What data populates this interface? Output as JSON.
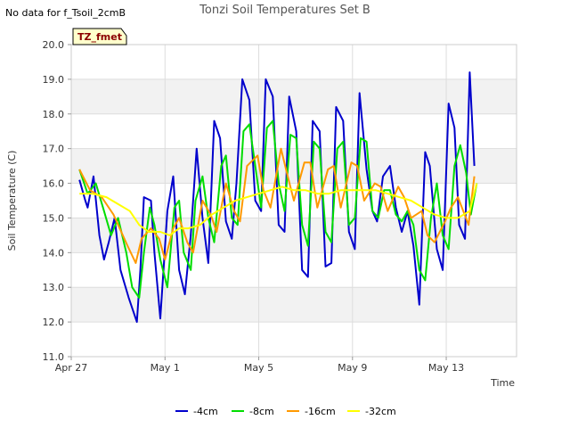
{
  "note": "No data for f_Tsoil_2cmB",
  "badge": "TZ_fmet",
  "chart_data": {
    "type": "line",
    "title": "Tonzi Soil Temperatures Set B",
    "xlabel": "Time",
    "ylabel": "Soil Temperature (C)",
    "ylim": [
      11.0,
      20.0
    ],
    "xlim": [
      0,
      19
    ],
    "y_ticks": [
      "11.0",
      "12.0",
      "13.0",
      "14.0",
      "15.0",
      "16.0",
      "17.0",
      "18.0",
      "19.0",
      "20.0"
    ],
    "x_ticks": [
      {
        "value": 0,
        "label": "Apr 27"
      },
      {
        "value": 4,
        "label": "May 1"
      },
      {
        "value": 8,
        "label": "May 5"
      },
      {
        "value": 12,
        "label": "May 9"
      },
      {
        "value": 16,
        "label": "May 13"
      }
    ],
    "x_unit": "days from Apr 27",
    "grid": true,
    "legend_position": "bottom",
    "series": [
      {
        "name": "-4cm",
        "color": "#0000cc",
        "x": [
          0.35,
          0.6,
          0.7,
          0.95,
          1.2,
          1.4,
          1.6,
          1.85,
          2.1,
          2.45,
          2.8,
          2.95,
          3.1,
          3.4,
          3.55,
          3.8,
          4.1,
          4.35,
          4.6,
          4.85,
          5.1,
          5.35,
          5.6,
          5.85,
          6.1,
          6.35,
          6.6,
          6.85,
          7.05,
          7.3,
          7.6,
          7.85,
          8.1,
          8.3,
          8.6,
          8.85,
          9.1,
          9.3,
          9.6,
          9.85,
          10.1,
          10.3,
          10.6,
          10.85,
          11.1,
          11.3,
          11.6,
          11.85,
          12.1,
          12.3,
          12.6,
          12.85,
          13.05,
          13.3,
          13.6,
          13.85,
          14.1,
          14.35,
          14.6,
          14.85,
          15.1,
          15.3,
          15.6,
          15.85,
          16.1,
          16.35,
          16.55,
          16.8,
          17.0,
          17.2
        ],
        "y": [
          16.1,
          15.5,
          15.3,
          16.2,
          14.5,
          13.8,
          14.3,
          15.0,
          13.5,
          12.7,
          12.0,
          13.5,
          15.6,
          15.5,
          14.0,
          12.1,
          15.2,
          16.2,
          13.5,
          12.8,
          14.5,
          17.0,
          15.0,
          13.7,
          17.8,
          17.3,
          14.9,
          14.4,
          16.0,
          19.0,
          18.4,
          15.5,
          15.2,
          19.0,
          18.5,
          14.8,
          14.6,
          18.5,
          17.5,
          13.5,
          13.3,
          17.8,
          17.5,
          13.6,
          13.7,
          18.2,
          17.8,
          14.6,
          14.1,
          18.6,
          16.4,
          15.2,
          14.9,
          16.2,
          16.5,
          15.3,
          14.6,
          15.2,
          14.2,
          12.5,
          16.9,
          16.5,
          14.1,
          13.5,
          18.3,
          17.6,
          14.8,
          14.4,
          19.2,
          16.5
        ]
      },
      {
        "name": "-8cm",
        "color": "#00dd00",
        "x": [
          0.35,
          0.7,
          1.05,
          1.4,
          1.7,
          2.0,
          2.35,
          2.6,
          2.9,
          3.1,
          3.35,
          3.55,
          3.8,
          4.1,
          4.4,
          4.6,
          4.8,
          5.1,
          5.3,
          5.6,
          5.85,
          6.1,
          6.4,
          6.6,
          6.85,
          7.1,
          7.35,
          7.6,
          7.85,
          8.1,
          8.35,
          8.6,
          8.85,
          9.1,
          9.35,
          9.6,
          9.85,
          10.1,
          10.35,
          10.6,
          10.85,
          11.1,
          11.35,
          11.6,
          11.85,
          12.1,
          12.35,
          12.6,
          12.85,
          13.1,
          13.35,
          13.6,
          13.85,
          14.1,
          14.35,
          14.6,
          14.85,
          15.1,
          15.35,
          15.6,
          15.85,
          16.1,
          16.35,
          16.6,
          16.85,
          17.05,
          17.3
        ],
        "y": [
          16.4,
          15.7,
          16.0,
          15.2,
          14.5,
          15.0,
          14.0,
          13.0,
          12.7,
          14.0,
          15.3,
          14.8,
          13.8,
          13.0,
          15.3,
          15.5,
          14.0,
          13.5,
          15.5,
          16.2,
          15.0,
          14.3,
          16.5,
          16.8,
          15.0,
          14.8,
          17.5,
          17.7,
          16.5,
          15.3,
          17.6,
          17.8,
          16.0,
          15.2,
          17.4,
          17.3,
          14.8,
          14.2,
          17.2,
          17.0,
          14.6,
          14.3,
          17.0,
          17.2,
          14.8,
          15.0,
          17.3,
          17.2,
          15.2,
          15.0,
          15.8,
          15.8,
          15.1,
          14.9,
          15.2,
          14.8,
          13.5,
          13.2,
          15.0,
          16.0,
          14.5,
          14.1,
          16.5,
          17.1,
          16.3,
          15.1,
          16.0
        ]
      },
      {
        "name": "-16cm",
        "color": "#ff9900",
        "x": [
          0.35,
          0.8,
          1.3,
          1.8,
          2.4,
          2.75,
          3.0,
          3.4,
          3.75,
          4.0,
          4.35,
          4.6,
          4.95,
          5.2,
          5.6,
          5.95,
          6.2,
          6.6,
          6.95,
          7.2,
          7.5,
          7.95,
          8.2,
          8.5,
          8.95,
          9.2,
          9.5,
          9.95,
          10.2,
          10.5,
          10.95,
          11.2,
          11.5,
          11.95,
          12.2,
          12.5,
          12.95,
          13.2,
          13.5,
          13.95,
          14.2,
          14.5,
          14.95,
          15.2,
          15.5,
          15.95,
          16.2,
          16.5,
          16.95,
          17.2
        ],
        "y": [
          16.4,
          15.8,
          15.6,
          15.1,
          14.2,
          13.7,
          14.4,
          14.7,
          14.4,
          13.8,
          14.7,
          15.0,
          14.3,
          14.0,
          15.5,
          15.1,
          14.6,
          16.0,
          15.2,
          14.9,
          16.5,
          16.8,
          15.8,
          15.3,
          17.0,
          16.3,
          15.5,
          16.6,
          16.6,
          15.3,
          16.4,
          16.5,
          15.3,
          16.6,
          16.5,
          15.5,
          16.0,
          15.9,
          15.2,
          15.9,
          15.6,
          15.0,
          15.2,
          14.5,
          14.3,
          14.9,
          15.3,
          15.6,
          14.8,
          16.2
        ]
      },
      {
        "name": "-32cm",
        "color": "#ffff00",
        "x": [
          0.35,
          0.9,
          1.5,
          2.0,
          2.5,
          2.9,
          3.3,
          3.8,
          4.2,
          4.6,
          5.0,
          5.5,
          6.0,
          6.5,
          7.0,
          7.5,
          8.0,
          8.5,
          9.0,
          9.5,
          10.0,
          10.5,
          11.0,
          11.5,
          12.0,
          12.5,
          13.0,
          13.5,
          14.0,
          14.5,
          15.0,
          15.5,
          16.0,
          16.5,
          17.0,
          17.3
        ],
        "y": [
          15.7,
          15.7,
          15.6,
          15.4,
          15.2,
          14.8,
          14.6,
          14.6,
          14.5,
          14.7,
          14.7,
          14.8,
          15.1,
          15.3,
          15.5,
          15.6,
          15.7,
          15.8,
          15.9,
          15.8,
          15.8,
          15.7,
          15.7,
          15.8,
          15.8,
          15.8,
          15.8,
          15.7,
          15.6,
          15.5,
          15.3,
          15.1,
          15.0,
          15.0,
          15.2,
          16.0
        ]
      }
    ]
  }
}
